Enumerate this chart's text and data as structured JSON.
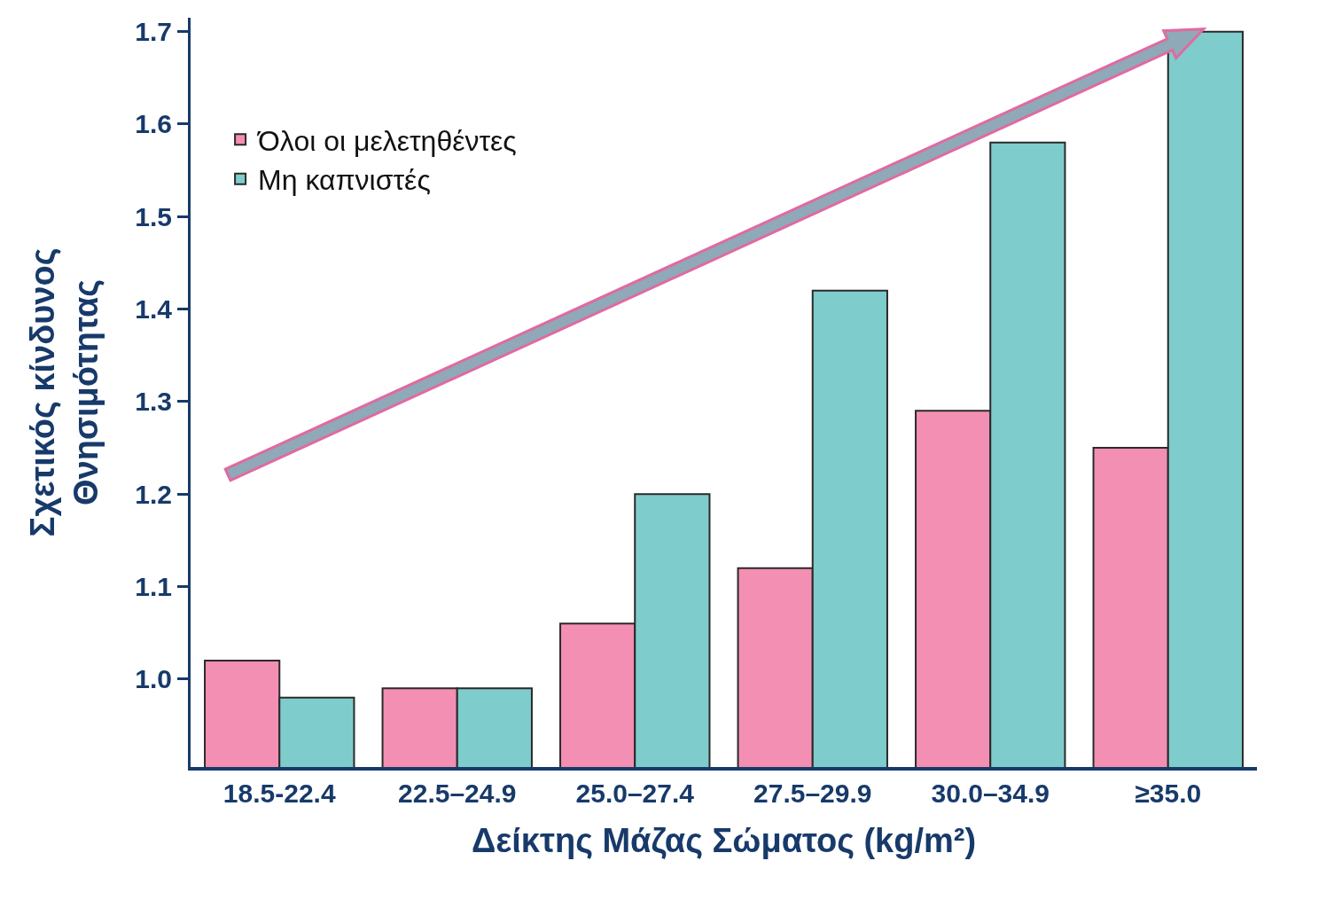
{
  "chart_data": {
    "type": "bar",
    "xlabel": "Δείκτης Μάζας Σώματος (kg/m²)",
    "ylabel": "Σχετικός κίνδυνος\nΘνησιμότητας",
    "categories": [
      "18.5-22.4",
      "22.5–24.9",
      "25.0–27.4",
      "27.5–29.9",
      "30.0–34.9",
      "≥35.0"
    ],
    "series": [
      {
        "name": "Όλοι οι μελετηθέντες",
        "color": "#f48fb4",
        "values": [
          1.02,
          0.99,
          1.06,
          1.12,
          1.29,
          1.25
        ]
      },
      {
        "name": "Μη καπνιστές",
        "color": "#7fcccc",
        "values": [
          0.98,
          0.99,
          1.2,
          1.42,
          1.58,
          1.7
        ]
      }
    ],
    "ylim": [
      0.905,
      1.715
    ],
    "yticks": [
      {
        "value": 1,
        "label": "1.0"
      },
      1.1,
      1.2,
      1.3,
      1.4,
      1.5,
      1.6,
      1.7
    ],
    "legend": "top left"
  }
}
